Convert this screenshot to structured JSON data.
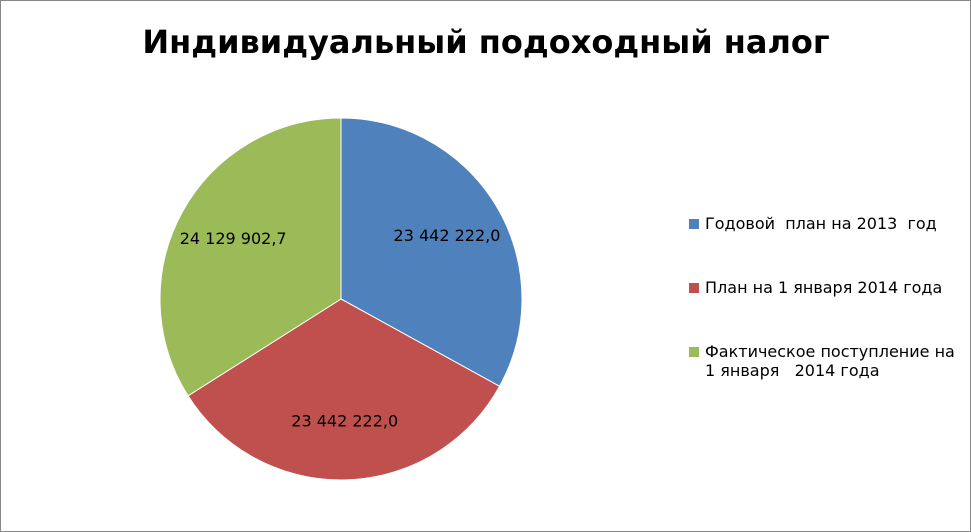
{
  "chart_data": {
    "type": "pie",
    "title": "Индивидуальный подоходный налог",
    "categories": [
      "Годовой  план на 2013  год",
      "План на 1 января 2014 года",
      "Фактическое поступление на  1 января   2014 года"
    ],
    "values": [
      23442222.0,
      23442222.0,
      24129902.7
    ],
    "value_labels": [
      "23 442 222,0",
      "23 442 222,0",
      "24 129 902,7"
    ],
    "colors": [
      "#4f81bd",
      "#c0504d",
      "#9bbb59"
    ],
    "legend": "right"
  }
}
